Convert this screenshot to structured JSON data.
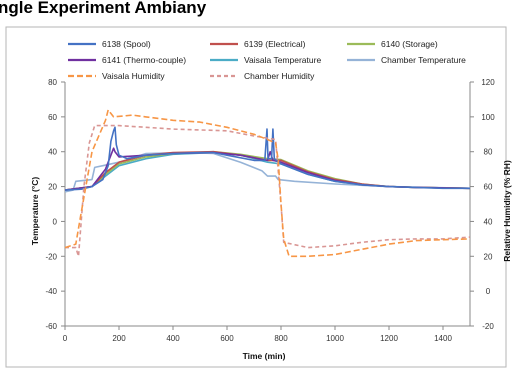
{
  "heading_fragment": "ngle Experiment Ambiany",
  "chart_data": {
    "type": "line",
    "title": "",
    "xlabel": "Time (min)",
    "ylabel": "Temperature (°C)",
    "y2label": "Relative Humidity (% RH)",
    "xlim": [
      0,
      1500
    ],
    "ylim": [
      -60,
      80
    ],
    "y2lim": [
      -20,
      120
    ],
    "xticks": [
      0,
      200,
      400,
      600,
      800,
      1000,
      1200,
      1400
    ],
    "yticks": [
      -60,
      -40,
      -20,
      0,
      20,
      40,
      60,
      80
    ],
    "y2ticks": [
      -20,
      0,
      20,
      40,
      60,
      80,
      100,
      120
    ],
    "grid": false,
    "legend_position": "top",
    "series": [
      {
        "name": "6138 (Spool)",
        "axis": "left",
        "color": "#4472c4",
        "dash": "solid",
        "points": [
          [
            0,
            18
          ],
          [
            60,
            18.5
          ],
          [
            100,
            20
          ],
          [
            140,
            24
          ],
          [
            160,
            32
          ],
          [
            170,
            46
          ],
          [
            180,
            52
          ],
          [
            185,
            54
          ],
          [
            190,
            44
          ],
          [
            200,
            38
          ],
          [
            230,
            36
          ],
          [
            300,
            38
          ],
          [
            400,
            39
          ],
          [
            500,
            39.5
          ],
          [
            550,
            39.5
          ],
          [
            600,
            38
          ],
          [
            700,
            35
          ],
          [
            740,
            35
          ],
          [
            748,
            53
          ],
          [
            752,
            36
          ],
          [
            765,
            36
          ],
          [
            770,
            53
          ],
          [
            775,
            36
          ],
          [
            800,
            33
          ],
          [
            900,
            27
          ],
          [
            1000,
            23
          ],
          [
            1100,
            21
          ],
          [
            1200,
            20
          ],
          [
            1300,
            19.5
          ],
          [
            1400,
            19
          ],
          [
            1500,
            19
          ]
        ]
      },
      {
        "name": "6139 (Electrical)",
        "axis": "left",
        "color": "#c0504d",
        "dash": "solid",
        "points": [
          [
            0,
            18
          ],
          [
            100,
            20
          ],
          [
            150,
            28
          ],
          [
            200,
            34
          ],
          [
            300,
            38
          ],
          [
            400,
            39.5
          ],
          [
            550,
            40
          ],
          [
            650,
            38
          ],
          [
            750,
            35
          ],
          [
            800,
            35
          ],
          [
            900,
            28.5
          ],
          [
            1000,
            24
          ],
          [
            1100,
            21.5
          ],
          [
            1200,
            20
          ],
          [
            1300,
            19.5
          ],
          [
            1500,
            19
          ]
        ]
      },
      {
        "name": "6140 (Storage)",
        "axis": "left",
        "color": "#9bbb59",
        "dash": "solid",
        "points": [
          [
            0,
            18
          ],
          [
            100,
            20
          ],
          [
            150,
            27
          ],
          [
            200,
            33
          ],
          [
            300,
            37
          ],
          [
            400,
            39
          ],
          [
            550,
            40
          ],
          [
            650,
            38.5
          ],
          [
            750,
            36
          ],
          [
            800,
            35.5
          ],
          [
            900,
            29
          ],
          [
            1000,
            24.5
          ],
          [
            1100,
            21.5
          ],
          [
            1200,
            20
          ],
          [
            1300,
            19.5
          ],
          [
            1500,
            19
          ]
        ]
      },
      {
        "name": "6141 (Thermo-couple)",
        "axis": "left",
        "color": "#7030a0",
        "dash": "solid",
        "points": [
          [
            0,
            18
          ],
          [
            100,
            20
          ],
          [
            150,
            30
          ],
          [
            170,
            38
          ],
          [
            180,
            42
          ],
          [
            185,
            40
          ],
          [
            200,
            37
          ],
          [
            300,
            38
          ],
          [
            400,
            39
          ],
          [
            550,
            39.5
          ],
          [
            650,
            38
          ],
          [
            750,
            35
          ],
          [
            760,
            40
          ],
          [
            770,
            35
          ],
          [
            800,
            34
          ],
          [
            900,
            28
          ],
          [
            1000,
            23.5
          ],
          [
            1100,
            21
          ],
          [
            1200,
            20
          ],
          [
            1300,
            19.5
          ],
          [
            1500,
            19
          ]
        ]
      },
      {
        "name": "Vaisala Temperature",
        "axis": "left",
        "color": "#4bacc6",
        "dash": "solid",
        "points": [
          [
            0,
            18
          ],
          [
            100,
            20
          ],
          [
            150,
            26
          ],
          [
            200,
            32
          ],
          [
            300,
            36
          ],
          [
            400,
            38.5
          ],
          [
            550,
            39.5
          ],
          [
            650,
            38
          ],
          [
            750,
            34
          ],
          [
            800,
            33
          ],
          [
            900,
            27
          ],
          [
            1000,
            23
          ],
          [
            1100,
            21
          ],
          [
            1200,
            20
          ],
          [
            1300,
            19.5
          ],
          [
            1500,
            19
          ]
        ]
      },
      {
        "name": "Chamber Temperature",
        "axis": "left",
        "color": "#95b3d7",
        "dash": "solid",
        "points": [
          [
            0,
            17
          ],
          [
            30,
            18
          ],
          [
            40,
            23
          ],
          [
            100,
            24
          ],
          [
            110,
            31
          ],
          [
            140,
            32
          ],
          [
            200,
            34
          ],
          [
            300,
            39
          ],
          [
            450,
            39.5
          ],
          [
            550,
            39
          ],
          [
            650,
            34
          ],
          [
            730,
            29
          ],
          [
            750,
            26
          ],
          [
            780,
            26
          ],
          [
            790,
            24
          ],
          [
            850,
            23
          ],
          [
            1000,
            21.5
          ],
          [
            1200,
            20
          ],
          [
            1500,
            19
          ]
        ]
      },
      {
        "name": "Vaisala Humidity",
        "axis": "right",
        "color": "#f79646",
        "dash": "6,3",
        "points": [
          [
            0,
            25
          ],
          [
            40,
            27
          ],
          [
            60,
            45
          ],
          [
            100,
            80
          ],
          [
            150,
            98
          ],
          [
            160,
            104
          ],
          [
            180,
            100
          ],
          [
            250,
            101
          ],
          [
            300,
            100
          ],
          [
            400,
            98
          ],
          [
            500,
            97
          ],
          [
            600,
            94
          ],
          [
            700,
            90
          ],
          [
            750,
            87
          ],
          [
            780,
            85
          ],
          [
            790,
            75
          ],
          [
            800,
            50
          ],
          [
            810,
            30
          ],
          [
            830,
            20
          ],
          [
            900,
            20
          ],
          [
            1000,
            21
          ],
          [
            1100,
            24
          ],
          [
            1200,
            27
          ],
          [
            1300,
            29
          ],
          [
            1400,
            29.5
          ],
          [
            1500,
            30
          ]
        ]
      },
      {
        "name": "Chamber Humidity",
        "axis": "right",
        "color": "#d99694",
        "dash": "4,3",
        "points": [
          [
            0,
            25
          ],
          [
            40,
            25
          ],
          [
            50,
            20
          ],
          [
            70,
            60
          ],
          [
            90,
            85
          ],
          [
            110,
            95
          ],
          [
            200,
            95
          ],
          [
            300,
            94
          ],
          [
            400,
            93
          ],
          [
            600,
            92
          ],
          [
            700,
            89
          ],
          [
            780,
            87
          ],
          [
            800,
            50
          ],
          [
            810,
            28
          ],
          [
            900,
            25
          ],
          [
            1000,
            26
          ],
          [
            1100,
            28
          ],
          [
            1200,
            29.5
          ],
          [
            1300,
            30
          ],
          [
            1400,
            30
          ],
          [
            1500,
            31
          ]
        ]
      }
    ]
  }
}
